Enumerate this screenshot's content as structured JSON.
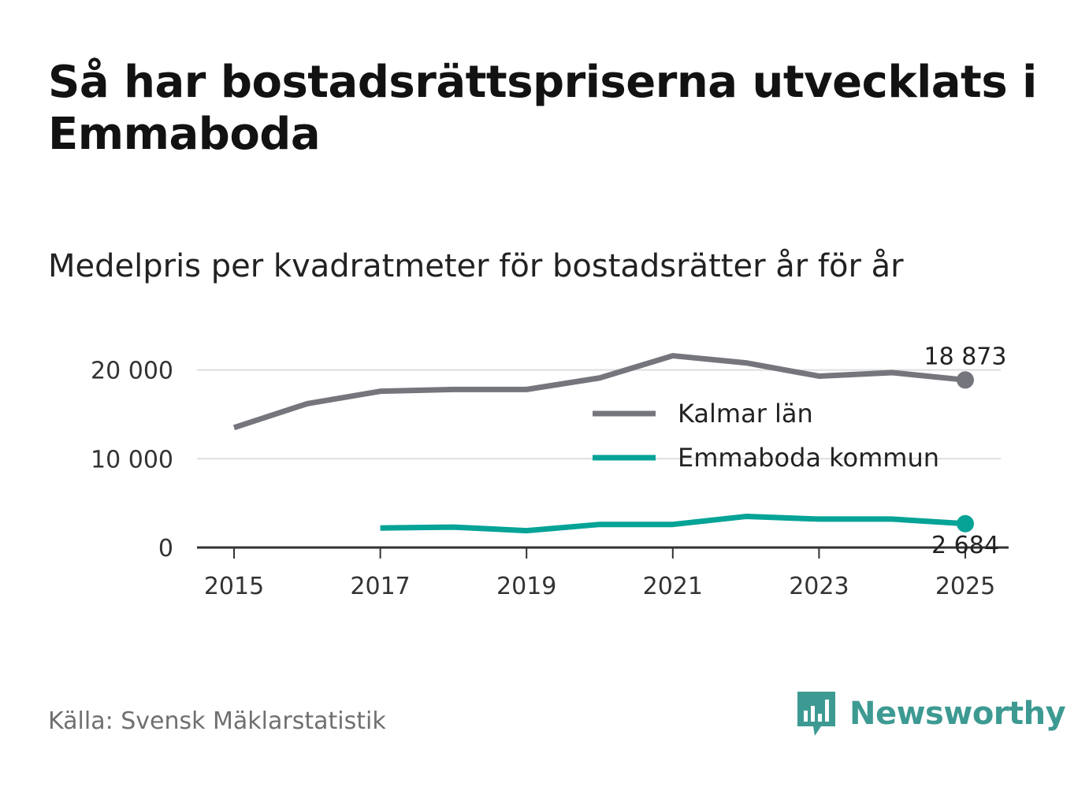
{
  "title": "Så har bostadsrättspriserna utvecklats i Emmaboda",
  "subtitle": "Medelpris per kvadratmeter för bostadsrätter år för år",
  "source": "Källa: Svensk Mäklarstatistik",
  "brand": "Newsworthy",
  "colors": {
    "kalmar": "#75757d",
    "emmaboda": "#06a397",
    "brand": "#3d9a92"
  },
  "chart_data": {
    "type": "line",
    "title": "Medelpris per kvadratmeter för bostadsrätter år för år",
    "x": [
      2015,
      2016,
      2017,
      2018,
      2019,
      2020,
      2021,
      2022,
      2023,
      2024,
      2025
    ],
    "xticks": [
      "2015",
      "2017",
      "2019",
      "2021",
      "2023",
      "2025"
    ],
    "yticks": [
      0,
      10000,
      20000
    ],
    "ytick_labels": [
      "0",
      "10 000",
      "20 000"
    ],
    "ylim": [
      0,
      22000
    ],
    "grid": true,
    "legend_position": "center-right",
    "series": [
      {
        "name": "Kalmar län",
        "values": [
          13500,
          16200,
          17600,
          17800,
          17800,
          19100,
          21600,
          20800,
          19300,
          19700,
          18873
        ],
        "end_label": "18 873"
      },
      {
        "name": "Emmaboda kommun",
        "values": [
          null,
          null,
          2200,
          2300,
          1900,
          2600,
          2600,
          3500,
          3200,
          3200,
          2684
        ],
        "end_label": "2 684"
      }
    ]
  }
}
